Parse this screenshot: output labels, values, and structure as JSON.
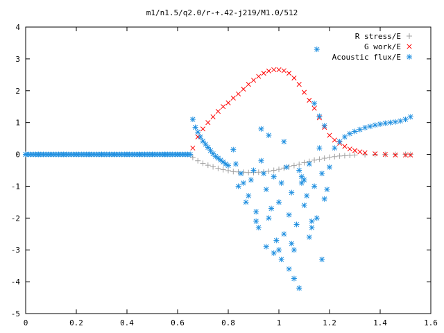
{
  "chart_data": {
    "type": "scatter",
    "title": "m1/n1.5/q2.0/r-+.42-j219/M1.0/512",
    "xlabel": "",
    "ylabel": "",
    "xlim": [
      0,
      1.6
    ],
    "ylim": [
      -5,
      4
    ],
    "xticks": [
      "0",
      "0.2",
      "0.4",
      "0.6",
      "0.8",
      "1",
      "1.2",
      "1.4",
      "1.6"
    ],
    "yticks": [
      "4",
      "3",
      "2",
      "1",
      "0",
      "-1",
      "-2",
      "-3",
      "-4",
      "-5"
    ],
    "grid": false,
    "legend_position": "top-right",
    "series": [
      {
        "name": "R stress/E",
        "marker": "+",
        "color": "#a0a0a0",
        "x": [
          0.66,
          0.68,
          0.7,
          0.72,
          0.74,
          0.76,
          0.78,
          0.8,
          0.82,
          0.84,
          0.86,
          0.88,
          0.9,
          0.92,
          0.94,
          0.96,
          0.98,
          1.0,
          1.02,
          1.04,
          1.06,
          1.08,
          1.1,
          1.12,
          1.14,
          1.16,
          1.18,
          1.2,
          1.22,
          1.24,
          1.26,
          1.28,
          1.3,
          1.34,
          1.38,
          1.42,
          1.46,
          1.5,
          1.52
        ],
        "y": [
          -0.1,
          -0.2,
          -0.28,
          -0.34,
          -0.39,
          -0.44,
          -0.48,
          -0.51,
          -0.54,
          -0.55,
          -0.56,
          -0.57,
          -0.57,
          -0.56,
          -0.55,
          -0.53,
          -0.5,
          -0.47,
          -0.43,
          -0.39,
          -0.35,
          -0.31,
          -0.26,
          -0.22,
          -0.18,
          -0.15,
          -0.12,
          -0.09,
          -0.07,
          -0.05,
          -0.04,
          -0.03,
          -0.02,
          -0.01,
          0.0,
          0.0,
          0.0,
          0.0,
          0.0
        ]
      },
      {
        "name": "G work/E",
        "marker": "x",
        "color": "#ff0000",
        "x": [
          0.66,
          0.68,
          0.7,
          0.72,
          0.74,
          0.76,
          0.78,
          0.8,
          0.82,
          0.84,
          0.86,
          0.88,
          0.9,
          0.92,
          0.94,
          0.96,
          0.98,
          1.0,
          1.02,
          1.04,
          1.06,
          1.08,
          1.1,
          1.12,
          1.14,
          1.16,
          1.18,
          1.2,
          1.22,
          1.24,
          1.26,
          1.28,
          1.3,
          1.32,
          1.34,
          1.38,
          1.42,
          1.46,
          1.5,
          1.52
        ],
        "y": [
          0.2,
          0.55,
          0.8,
          1.0,
          1.18,
          1.35,
          1.5,
          1.62,
          1.77,
          1.9,
          2.05,
          2.2,
          2.33,
          2.45,
          2.55,
          2.62,
          2.66,
          2.66,
          2.63,
          2.55,
          2.4,
          2.2,
          1.95,
          1.7,
          1.45,
          1.15,
          0.85,
          0.6,
          0.45,
          0.35,
          0.25,
          0.17,
          0.12,
          0.08,
          0.05,
          0.02,
          0.0,
          -0.02,
          -0.02,
          -0.02
        ]
      },
      {
        "name": "Acoustic flux/E",
        "marker": "*",
        "color": "#1f8fe0",
        "x": [
          0.0,
          0.05,
          0.1,
          0.15,
          0.2,
          0.25,
          0.3,
          0.35,
          0.4,
          0.45,
          0.5,
          0.55,
          0.6,
          0.65,
          0.66,
          0.67,
          0.68,
          0.69,
          0.7,
          0.71,
          0.72,
          0.73,
          0.74,
          0.75,
          0.76,
          0.77,
          0.78,
          0.79,
          0.8,
          1.22,
          1.24,
          1.26,
          1.28,
          1.3,
          1.32,
          1.34,
          1.36,
          1.38,
          1.4,
          1.42,
          1.44,
          1.46,
          1.48,
          1.5,
          1.52,
          0.82,
          0.83,
          0.85,
          0.86,
          0.88,
          0.9,
          0.91,
          0.93,
          0.95,
          0.96,
          0.98,
          1.0,
          1.02,
          1.03,
          1.05,
          1.07,
          1.09,
          1.1,
          1.12,
          1.14,
          1.15,
          1.17,
          1.18,
          1.2,
          0.84,
          0.87,
          0.89,
          0.92,
          0.94,
          0.97,
          0.99,
          1.01,
          1.04,
          1.06,
          1.08,
          1.11,
          1.13,
          1.16,
          1.19,
          0.93,
          0.96,
          1.0,
          1.05,
          1.09,
          1.13,
          1.17,
          1.02,
          1.06,
          1.14,
          1.16,
          1.18,
          1.04,
          1.08,
          1.12,
          0.91,
          0.95,
          0.98,
          1.01,
          1.1,
          1.15
        ],
        "y": [
          0.0,
          0.0,
          0.0,
          0.0,
          0.0,
          0.0,
          0.0,
          0.0,
          0.0,
          0.0,
          0.0,
          0.0,
          0.0,
          0.0,
          1.1,
          0.85,
          0.7,
          0.55,
          0.42,
          0.32,
          0.22,
          0.12,
          0.02,
          -0.06,
          -0.12,
          -0.18,
          -0.24,
          -0.3,
          -0.35,
          0.2,
          0.4,
          0.55,
          0.65,
          0.72,
          0.78,
          0.84,
          0.88,
          0.92,
          0.95,
          0.98,
          1.0,
          1.02,
          1.05,
          1.1,
          1.18,
          0.15,
          -0.3,
          -0.6,
          -0.9,
          -1.3,
          -0.5,
          -1.8,
          -0.2,
          -1.1,
          -2.0,
          -0.7,
          -1.5,
          -2.5,
          -0.4,
          -1.2,
          -2.2,
          -0.9,
          -1.6,
          -0.3,
          -1.0,
          -2.0,
          -0.6,
          -1.4,
          -0.4,
          -1.0,
          -1.5,
          -0.8,
          -2.3,
          -0.6,
          -1.7,
          -2.7,
          -0.9,
          -1.9,
          -3.0,
          -0.5,
          -1.3,
          -2.1,
          0.2,
          -1.1,
          0.8,
          0.6,
          -3.0,
          -2.8,
          -0.7,
          -2.3,
          -3.3,
          0.4,
          -3.9,
          1.6,
          1.2,
          0.9,
          -3.6,
          -4.2,
          -2.6,
          -2.1,
          -2.9,
          -3.1,
          -3.3,
          -0.8,
          3.3
        ]
      }
    ]
  }
}
